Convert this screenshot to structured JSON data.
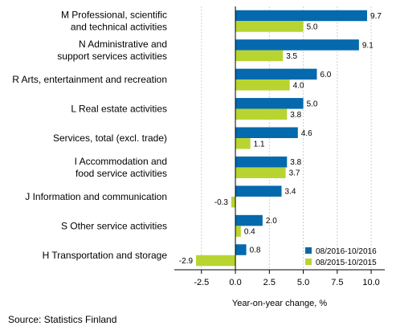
{
  "chart_data": {
    "type": "bar",
    "orientation": "horizontal",
    "categories": [
      [
        "M Professional, scientific",
        "and technical activities"
      ],
      [
        "N Administrative and",
        "support services activities"
      ],
      [
        "R Arts, entertainment and recreation"
      ],
      [
        "L Real estate activities"
      ],
      [
        "Services, total (excl. trade)"
      ],
      [
        "I Accommodation and",
        "food service activities"
      ],
      [
        "J Information and communication"
      ],
      [
        "S Other service activities"
      ],
      [
        "H Transportation and storage"
      ]
    ],
    "series": [
      {
        "name": "08/2016-10/2016",
        "color": "#0569ad",
        "values": [
          9.7,
          9.1,
          6.0,
          5.0,
          4.6,
          3.8,
          3.4,
          2.0,
          0.8
        ]
      },
      {
        "name": "08/2015-10/2015",
        "color": "#b8d430",
        "values": [
          5.0,
          3.5,
          4.0,
          3.8,
          1.1,
          3.7,
          -0.3,
          0.4,
          -2.9
        ]
      }
    ],
    "value_labels": [
      [
        "9.7",
        "9.1",
        "6.0",
        "5.0",
        "4.6",
        "3.8",
        "3.4",
        "2.0",
        "0.8"
      ],
      [
        "5.0",
        "3.5",
        "4.0",
        "3.8",
        "1.1",
        "3.7",
        "-0.3",
        "0.4",
        "-2.9"
      ]
    ],
    "xlim": [
      -4.5,
      11.0
    ],
    "xticks": [
      -2.5,
      0.0,
      2.5,
      5.0,
      7.5,
      10.0
    ],
    "xtick_labels": [
      "-2.5",
      "0.0",
      "2.5",
      "5.0",
      "7.5",
      "10.0"
    ],
    "xlabel": "Year-on-year change, %",
    "ylabel": "",
    "title": "",
    "grid": "vertical dashed",
    "legend_position": "bottom-right"
  },
  "source": "Source: Statistics Finland"
}
